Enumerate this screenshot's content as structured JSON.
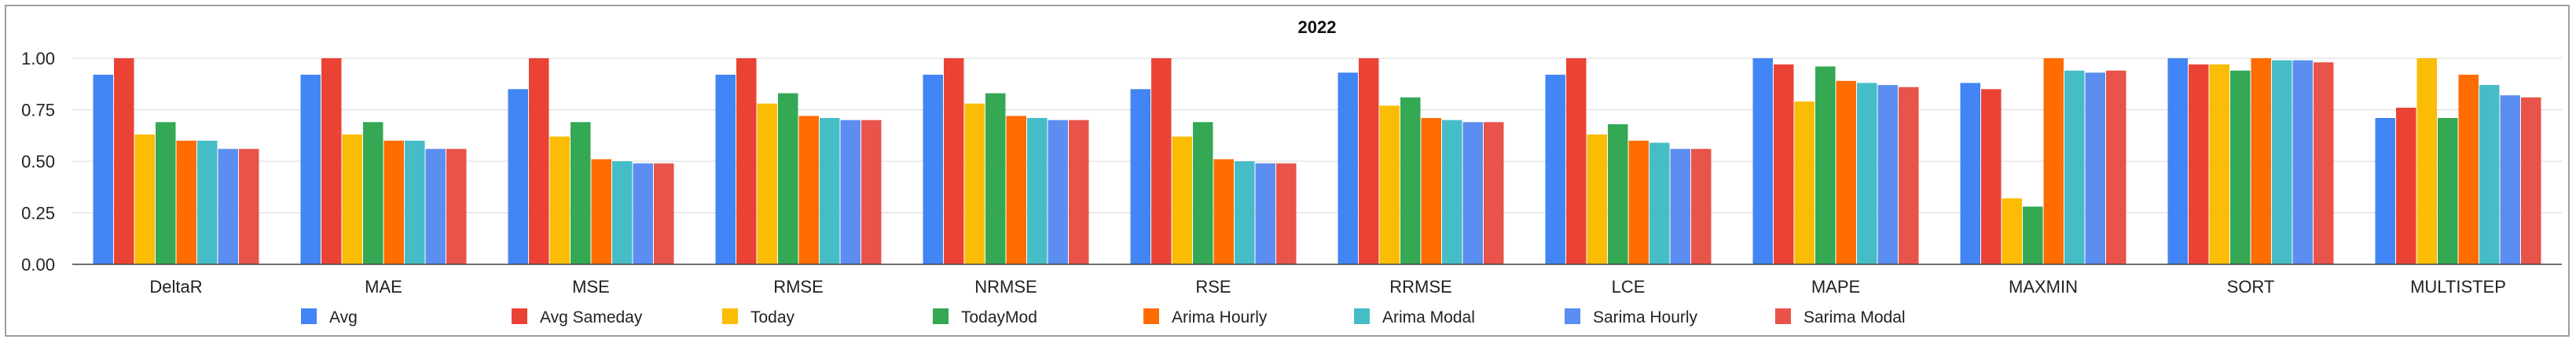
{
  "chart_data": {
    "type": "bar",
    "title": "2022",
    "xlabel": "",
    "ylabel": "",
    "ylim": [
      0,
      1
    ],
    "yticks": [
      "0.00",
      "0.25",
      "0.50",
      "0.75",
      "1.00"
    ],
    "grid": true,
    "legend_position": "bottom",
    "categories": [
      "DeltaR",
      "MAE",
      "MSE",
      "RMSE",
      "NRMSE",
      "RSE",
      "RRMSE",
      "LCE",
      "MAPE",
      "MAXMIN",
      "SORT",
      "MULTISTEP"
    ],
    "series": [
      {
        "name": "Avg",
        "color": "#4285F4",
        "values": [
          0.92,
          0.92,
          0.85,
          0.92,
          0.92,
          0.85,
          0.93,
          0.92,
          1.0,
          0.88,
          1.0,
          0.71
        ]
      },
      {
        "name": "Avg Sameday",
        "color": "#EA4335",
        "values": [
          1.0,
          1.0,
          1.0,
          1.0,
          1.0,
          1.0,
          1.0,
          1.0,
          0.97,
          0.85,
          0.97,
          0.76
        ]
      },
      {
        "name": "Today",
        "color": "#FBBC04",
        "values": [
          0.63,
          0.63,
          0.62,
          0.78,
          0.78,
          0.62,
          0.77,
          0.63,
          0.79,
          0.32,
          0.97,
          1.0
        ]
      },
      {
        "name": "TodayMod",
        "color": "#34A853",
        "values": [
          0.69,
          0.69,
          0.69,
          0.83,
          0.83,
          0.69,
          0.81,
          0.68,
          0.96,
          0.28,
          0.94,
          0.71
        ]
      },
      {
        "name": "Arima Hourly",
        "color": "#FF6D01",
        "values": [
          0.6,
          0.6,
          0.51,
          0.72,
          0.72,
          0.51,
          0.71,
          0.6,
          0.89,
          1.0,
          1.0,
          0.92
        ]
      },
      {
        "name": "Arima Modal",
        "color": "#46BDC6",
        "values": [
          0.6,
          0.6,
          0.5,
          0.71,
          0.71,
          0.5,
          0.7,
          0.59,
          0.88,
          0.94,
          0.99,
          0.87
        ]
      },
      {
        "name": "Sarima Hourly",
        "color": "#5B8EF0",
        "values": [
          0.56,
          0.56,
          0.49,
          0.7,
          0.7,
          0.49,
          0.69,
          0.56,
          0.87,
          0.93,
          0.99,
          0.82
        ]
      },
      {
        "name": "Sarima Modal",
        "color": "#E8534A",
        "values": [
          0.56,
          0.56,
          0.49,
          0.7,
          0.7,
          0.49,
          0.69,
          0.56,
          0.86,
          0.94,
          0.98,
          0.81
        ]
      }
    ]
  }
}
